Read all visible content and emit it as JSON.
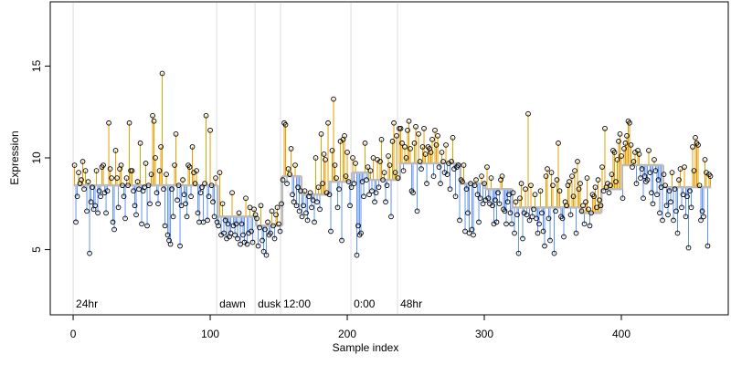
{
  "chart_data": {
    "type": "stem",
    "xlabel": "Sample index",
    "ylabel": "Expression",
    "xlim": [
      -16.7,
      478
    ],
    "ylim": [
      1.45,
      18.5
    ],
    "xticks": [
      0,
      100,
      200,
      300,
      400
    ],
    "yticks": [
      5,
      10,
      15
    ],
    "above_color": "#e69f00",
    "below_color": "#6495ed",
    "baseline_color": "#bbbbbb",
    "point_color": "#000000",
    "event_color": "#aaaaaa",
    "events": [
      {
        "x": 0,
        "label": "24hr"
      },
      {
        "x": 104.7,
        "label": "dawn"
      },
      {
        "x": 132.7,
        "label": "dusk"
      },
      {
        "x": 151.3,
        "label": "12:00"
      },
      {
        "x": 202.7,
        "label": "0:00"
      },
      {
        "x": 236.7,
        "label": "48hr"
      }
    ],
    "baseline": [
      {
        "from": 0,
        "to": 104,
        "level": 8.5
      },
      {
        "from": 105,
        "to": 132,
        "level": 6.8
      },
      {
        "from": 133,
        "to": 151,
        "level": 6.3
      },
      {
        "from": 152,
        "to": 165,
        "level": 9.0
      },
      {
        "from": 166,
        "to": 185,
        "level": 8.0
      },
      {
        "from": 186,
        "to": 202,
        "level": 8.7
      },
      {
        "from": 203,
        "to": 214,
        "level": 9.2
      },
      {
        "from": 215,
        "to": 237,
        "level": 8.8
      },
      {
        "from": 238,
        "to": 281,
        "level": 9.7
      },
      {
        "from": 282,
        "to": 299,
        "level": 8.6
      },
      {
        "from": 300,
        "to": 319,
        "level": 8.3
      },
      {
        "from": 320,
        "to": 369,
        "level": 7.3
      },
      {
        "from": 370,
        "to": 384,
        "level": 7.0
      },
      {
        "from": 385,
        "to": 399,
        "level": 8.3
      },
      {
        "from": 400,
        "to": 429,
        "level": 9.6
      },
      {
        "from": 430,
        "to": 464,
        "level": 8.4
      }
    ],
    "values": [
      9.6,
      6.5,
      7.9,
      9.2,
      8.6,
      8.8,
      9.8,
      8.3,
      9.3,
      7.1,
      8.7,
      4.8,
      7.6,
      8.4,
      7.2,
      7.4,
      9.3,
      7.0,
      8.2,
      7.9,
      9.5,
      9.6,
      8.1,
      7.0,
      8.2,
      11.9,
      9.4,
      8.9,
      6.5,
      6.1,
      10.4,
      8.9,
      7.3,
      9.4,
      9.6,
      8.5,
      7.9,
      6.7,
      8.9,
      8.5,
      11.9,
      9.3,
      9.3,
      8.2,
      7.4,
      6.9,
      8.7,
      8.3,
      10.8,
      6.4,
      8.2,
      8.4,
      9.7,
      6.3,
      8.5,
      7.5,
      9.1,
      12.3,
      12.0,
      10.0,
      8.1,
      7.5,
      9.3,
      10.6,
      14.6,
      8.3,
      6.3,
      9.1,
      5.8,
      5.5,
      5.3,
      8.3,
      6.8,
      9.6,
      11.3,
      7.7,
      8.5,
      5.2,
      7.4,
      8.8,
      8.0,
      7.5,
      6.8,
      9.6,
      9.5,
      7.9,
      10.6,
      9.2,
      8.6,
      9.3,
      7.0,
      6.5,
      8.1,
      8.4,
      6.5,
      8.6,
      12.3,
      6.6,
      7.9,
      11.5,
      8.5,
      7.6,
      6.8,
      8.9,
      6.5,
      6.3,
      9.2,
      5.8,
      7.5,
      5.9,
      6.6,
      5.6,
      6.4,
      5.7,
      5.9,
      8.1,
      6.3,
      5.8,
      6.4,
      5.6,
      7.0,
      5.3,
      6.4,
      5.8,
      5.4,
      7.8,
      5.3,
      5.9,
      7.3,
      6.0,
      5.4,
      7.2,
      6.9,
      6.7,
      5.2,
      6.2,
      7.4,
      5.5,
      4.9,
      6.1,
      4.7,
      6.5,
      5.8,
      5.9,
      7.1,
      6.3,
      5.6,
      6.9,
      7.3,
      6.4,
      6.0,
      7.5,
      8.8,
      11.9,
      11.8,
      8.6,
      9.4,
      9.1,
      10.5,
      8.0,
      7.6,
      9.6,
      7.4,
      8.4,
      7.1,
      8.2,
      6.8,
      7.4,
      8.2,
      7.0,
      6.6,
      7.9,
      8.1,
      7.3,
      7.7,
      6.5,
      10.0,
      7.6,
      8.4,
      7.2,
      11.3,
      8.6,
      10.2,
      9.9,
      8.1,
      11.9,
      8.0,
      6.0,
      10.4,
      13.2,
      9.6,
      8.9,
      7.3,
      8.3,
      10.9,
      5.5,
      11.0,
      11.2,
      9.0,
      10.3,
      8.7,
      7.4,
      8.4,
      10.0,
      8.6,
      9.7,
      4.7,
      6.3,
      5.8,
      5.9,
      8.7,
      7.9,
      10.8,
      8.8,
      9.5,
      8.0,
      9.3,
      8.2,
      10.0,
      7.6,
      8.1,
      9.9,
      8.4,
      9.8,
      11.0,
      8.8,
      9.2,
      7.6,
      8.5,
      10.1,
      9.6,
      6.8,
      10.9,
      11.9,
      9.2,
      11.2,
      8.9,
      11.6,
      11.6,
      10.8,
      9.3,
      10.6,
      10.0,
      11.5,
      12.0,
      10.5,
      8.2,
      8.1,
      10.8,
      11.7,
      7.1,
      11.3,
      9.8,
      9.4,
      10.6,
      11.6,
      10.2,
      8.6,
      10.6,
      10.5,
      10.3,
      11.0,
      9.0,
      11.5,
      10.7,
      11.2,
      9.5,
      8.6,
      10.3,
      9.8,
      9.2,
      10.7,
      9.1,
      9.7,
      8.3,
      9.8,
      11.1,
      9.4,
      7.9,
      9.5,
      9.6,
      6.6,
      8.8,
      8.7,
      9.6,
      6.0,
      8.3,
      7.0,
      5.9,
      8.6,
      6.1,
      5.8,
      8.5,
      8.8,
      8.0,
      6.5,
      7.8,
      9.0,
      7.5,
      8.6,
      7.7,
      9.5,
      7.8,
      7.5,
      8.9,
      7.4,
      6.4,
      7.7,
      6.5,
      8.1,
      7.5,
      8.8,
      9.0,
      7.2,
      7.1,
      6.4,
      7.6,
      8.0,
      7.0,
      6.4,
      8.1,
      5.9,
      7.6,
      6.9,
      4.8,
      7.8,
      8.6,
      5.6,
      7.0,
      8.3,
      6.9,
      12.4,
      6.6,
      8.5,
      6.8,
      7.2,
      8.0,
      6.7,
      5.9,
      6.4,
      8.2,
      7.0,
      6.0,
      5.2,
      9.0,
      9.4,
      6.7,
      5.5,
      9.2,
      8.5,
      4.8,
      7.1,
      8.8,
      10.8,
      8.2,
      6.8,
      6.7,
      5.7,
      7.6,
      7.4,
      8.5,
      8.7,
      6.9,
      9.0,
      7.9,
      9.3,
      5.9,
      9.8,
      8.3,
      8.6,
      7.1,
      7.4,
      6.4,
      7.6,
      8.9,
      7.2,
      6.3,
      7.0,
      8.0,
      7.9,
      8.4,
      7.3,
      8.8,
      7.7,
      7.4,
      9.5,
      8.2,
      11.6,
      8.4,
      8.6,
      8.1,
      8.5,
      9.1,
      10.4,
      10.3,
      8.7,
      9.9,
      10.9,
      11.3,
      10.1,
      7.8,
      10.5,
      10.8,
      11.2,
      12.0,
      11.9,
      10.7,
      9.5,
      9.8,
      10.3,
      8.6,
      10.4,
      10.2,
      8.9,
      9.4,
      7.8,
      9.0,
      8.7,
      8.8,
      10.4,
      9.2,
      8.1,
      7.5,
      9.9,
      9.3,
      8.0,
      8.8,
      7.0,
      8.4,
      6.6,
      9.1,
      8.5,
      7.4,
      6.9,
      8.2,
      7.6,
      9.2,
      6.6,
      8.3,
      7.1,
      5.9,
      8.8,
      9.4,
      7.3,
      8.0,
      9.5,
      6.8,
      7.9,
      5.1,
      8.2,
      7.3,
      10.6,
      9.3,
      11.1,
      10.8,
      10.7,
      8.5,
      6.6,
      7.1,
      6.8,
      9.9,
      9.2,
      5.2,
      9.1,
      9.0
    ]
  }
}
